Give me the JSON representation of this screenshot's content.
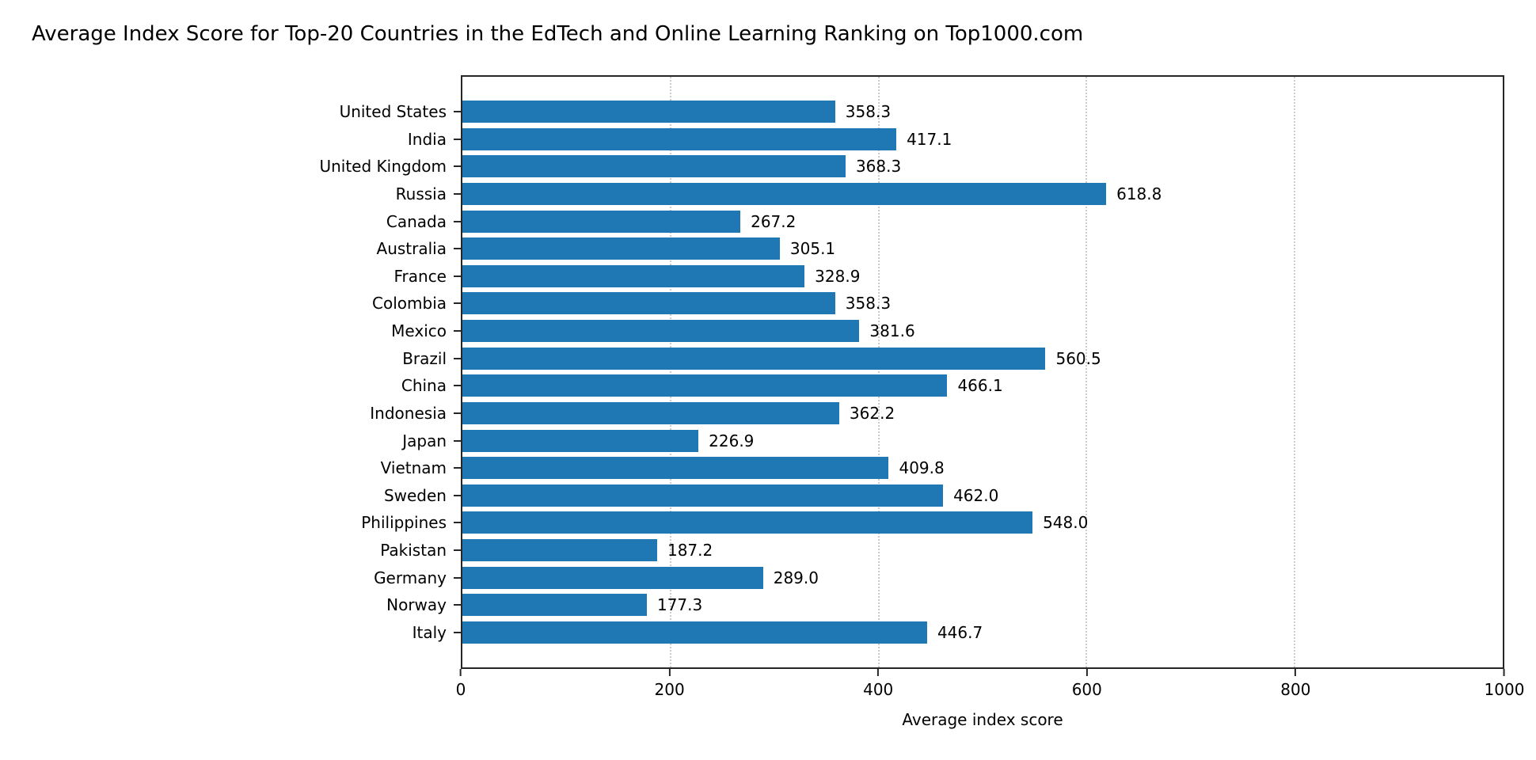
{
  "chart_data": {
    "type": "bar",
    "orientation": "horizontal",
    "title": "Average Index Score for Top-20 Countries in the EdTech and Online Learning Ranking on Top1000.com",
    "xlabel": "Average index score",
    "ylabel": "",
    "xlim": [
      0,
      1000
    ],
    "xticks": [
      0,
      200,
      400,
      600,
      800,
      1000
    ],
    "grid": "vertical-dotted",
    "legend_position": "none",
    "bar_color": "#1f77b4",
    "categories": [
      "United States",
      "India",
      "United Kingdom",
      "Russia",
      "Canada",
      "Australia",
      "France",
      "Colombia",
      "Mexico",
      "Brazil",
      "China",
      "Indonesia",
      "Japan",
      "Vietnam",
      "Sweden",
      "Philippines",
      "Pakistan",
      "Germany",
      "Norway",
      "Italy"
    ],
    "values": [
      358.3,
      417.1,
      368.3,
      618.8,
      267.2,
      305.1,
      328.9,
      358.3,
      381.6,
      560.5,
      466.1,
      362.2,
      226.9,
      409.8,
      462.0,
      548.0,
      187.2,
      289.0,
      177.3,
      446.7
    ]
  }
}
